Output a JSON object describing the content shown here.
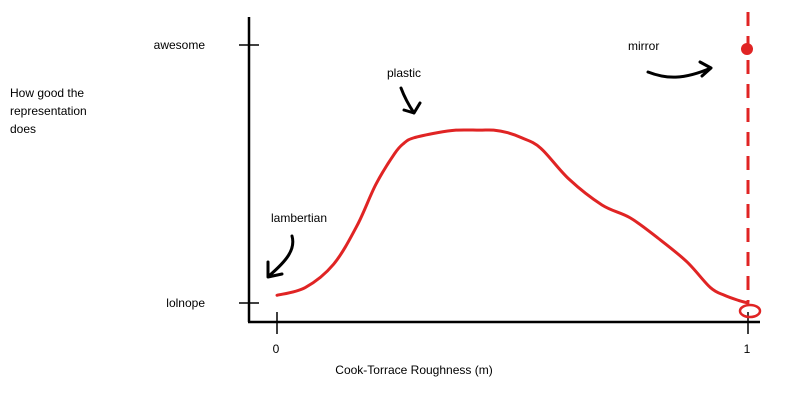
{
  "chart_data": {
    "type": "line",
    "title": "",
    "xlabel": "Cook-Torrace Roughness  (m)",
    "ylabel": "How good the\nrepresentation\ndoes",
    "xlim": [
      -0.06,
      1.0
    ],
    "ylim": [
      0,
      1
    ],
    "x_ticks": [
      {
        "value": 0,
        "label": "0"
      },
      {
        "value": 1,
        "label": "1"
      }
    ],
    "y_ticks": [
      {
        "value": 0,
        "label": "lolnope"
      },
      {
        "value": 1,
        "label": "awesome"
      }
    ],
    "grid": false,
    "series": [
      {
        "color": "#e02424",
        "x": [
          0.0,
          0.06,
          0.12,
          0.17,
          0.21,
          0.25,
          0.27,
          0.29,
          0.34,
          0.38,
          0.43,
          0.46,
          0.49,
          0.52,
          0.56,
          0.62,
          0.69,
          0.75,
          0.81,
          0.87,
          0.92,
          0.95,
          0.98,
          1.0
        ],
        "y": [
          0.03,
          0.06,
          0.15,
          0.3,
          0.46,
          0.58,
          0.62,
          0.64,
          0.66,
          0.67,
          0.67,
          0.67,
          0.66,
          0.64,
          0.6,
          0.48,
          0.38,
          0.33,
          0.25,
          0.16,
          0.06,
          0.03,
          0.01,
          0.0
        ]
      }
    ],
    "mirror_point": {
      "x": 1.0,
      "y": 1.0,
      "color": "#e02424"
    },
    "annotations": [
      {
        "text": "lambertian",
        "x": 0.0,
        "y": 0.03
      },
      {
        "text": "plastic",
        "x": 0.29,
        "y": 0.64
      },
      {
        "text": "mirror",
        "x": 1.0,
        "y": 1.0
      }
    ]
  }
}
